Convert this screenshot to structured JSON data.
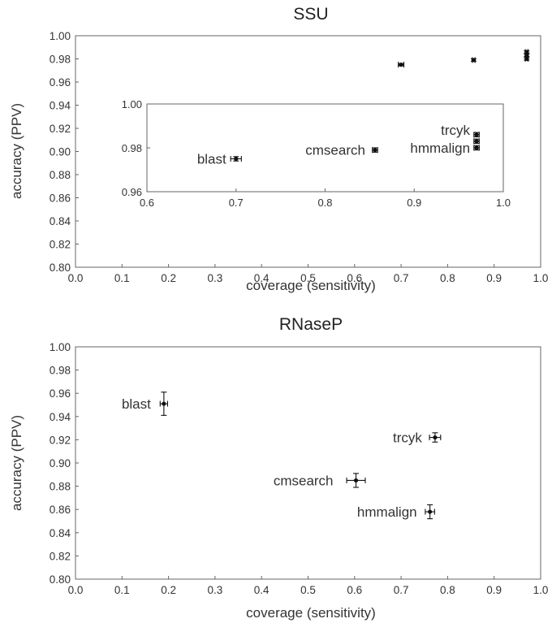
{
  "chart_data": [
    {
      "type": "scatter",
      "title": "SSU",
      "xlabel": "coverage (sensitivity)",
      "ylabel": "accuracy (PPV)",
      "xlim": [
        0.0,
        1.0
      ],
      "ylim": [
        0.8,
        1.0
      ],
      "xticks": [
        "0.0",
        "0.1",
        "0.2",
        "0.3",
        "0.4",
        "0.5",
        "0.6",
        "0.7",
        "0.8",
        "0.9",
        "1.0"
      ],
      "yticks": [
        "0.80",
        "0.82",
        "0.84",
        "0.86",
        "0.88",
        "0.90",
        "0.92",
        "0.94",
        "0.96",
        "0.98",
        "1.00"
      ],
      "points": [
        {
          "x": 0.7,
          "y": 0.975,
          "xerr": 0.006,
          "yerr": 0.001
        },
        {
          "x": 0.856,
          "y": 0.979,
          "xerr": 0.003,
          "yerr": 0.001
        },
        {
          "x": 0.97,
          "y": 0.98,
          "xerr": 0.003,
          "yerr": 0.001
        },
        {
          "x": 0.97,
          "y": 0.983,
          "xerr": 0.003,
          "yerr": 0.001
        },
        {
          "x": 0.97,
          "y": 0.986,
          "xerr": 0.003,
          "yerr": 0.001
        }
      ],
      "inset": {
        "xlim": [
          0.6,
          1.0
        ],
        "ylim": [
          0.96,
          1.0
        ],
        "xticks": [
          "0.6",
          "0.7",
          "0.8",
          "0.9",
          "1.0"
        ],
        "yticks": [
          "0.96",
          "0.98",
          "1.00"
        ],
        "points": [
          {
            "label": "blast",
            "x": 0.7,
            "y": 0.975,
            "xerr": 0.006,
            "yerr": 0.001
          },
          {
            "label": "cmsearch",
            "x": 0.856,
            "y": 0.979,
            "xerr": 0.003,
            "yerr": 0.001
          },
          {
            "label": "hmmalign",
            "x": 0.97,
            "y": 0.98,
            "xerr": 0.003,
            "yerr": 0.001
          },
          {
            "label": "",
            "x": 0.97,
            "y": 0.983,
            "xerr": 0.003,
            "yerr": 0.001
          },
          {
            "label": "trcyk",
            "x": 0.97,
            "y": 0.986,
            "xerr": 0.003,
            "yerr": 0.001
          }
        ]
      }
    },
    {
      "type": "scatter",
      "title": "RNaseP",
      "xlabel": "coverage (sensitivity)",
      "ylabel": "accuracy (PPV)",
      "xlim": [
        0.0,
        1.0
      ],
      "ylim": [
        0.8,
        1.0
      ],
      "xticks": [
        "0.0",
        "0.1",
        "0.2",
        "0.3",
        "0.4",
        "0.5",
        "0.6",
        "0.7",
        "0.8",
        "0.9",
        "1.0"
      ],
      "yticks": [
        "0.80",
        "0.82",
        "0.84",
        "0.86",
        "0.88",
        "0.90",
        "0.92",
        "0.94",
        "0.96",
        "0.98",
        "1.00"
      ],
      "points": [
        {
          "label": "blast",
          "x": 0.19,
          "y": 0.951,
          "xerr": 0.008,
          "yerr": 0.01
        },
        {
          "label": "trcyk",
          "x": 0.773,
          "y": 0.922,
          "xerr": 0.012,
          "yerr": 0.004
        },
        {
          "label": "cmsearch",
          "x": 0.603,
          "y": 0.885,
          "xerr": 0.02,
          "yerr": 0.006
        },
        {
          "label": "hmmalign",
          "x": 0.762,
          "y": 0.858,
          "xerr": 0.01,
          "yerr": 0.006
        }
      ]
    }
  ]
}
